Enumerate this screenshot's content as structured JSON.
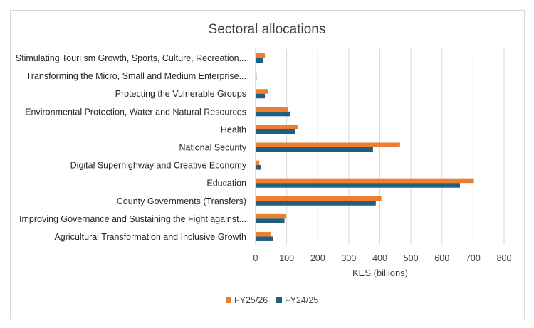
{
  "chart_data": {
    "type": "bar",
    "orientation": "horizontal",
    "title": "Sectoral allocations",
    "xlabel": "KES (billions)",
    "ylabel": "",
    "xlim": [
      0,
      800
    ],
    "xticks": [
      0,
      100,
      200,
      300,
      400,
      500,
      600,
      700,
      800
    ],
    "grid": true,
    "legend_position": "bottom",
    "categories": [
      "Stimulating Touri sm Growth, Sports, Culture, Recreation...",
      "Transforming the Micro, Small and Medium Enterprise...",
      "Protecting the Vulnerable Groups",
      "Environmental Protection, Water and Natural Resources",
      "Health",
      "National Security",
      "Digital Superhighway and Creative Economy",
      "Education",
      "County Governments (Transfers)",
      "Improving Governance and Sustaining the Fight against...",
      "Agricultural Transformation and Inclusive Growth"
    ],
    "series": [
      {
        "name": "FY25/26",
        "color": "#ed7d31",
        "values": [
          30,
          3,
          40,
          105,
          135,
          465,
          12,
          703,
          405,
          98,
          48
        ]
      },
      {
        "name": "FY24/25",
        "color": "#1f5f7f",
        "values": [
          23,
          3,
          30,
          110,
          127,
          378,
          17,
          658,
          387,
          93,
          55
        ]
      }
    ]
  }
}
